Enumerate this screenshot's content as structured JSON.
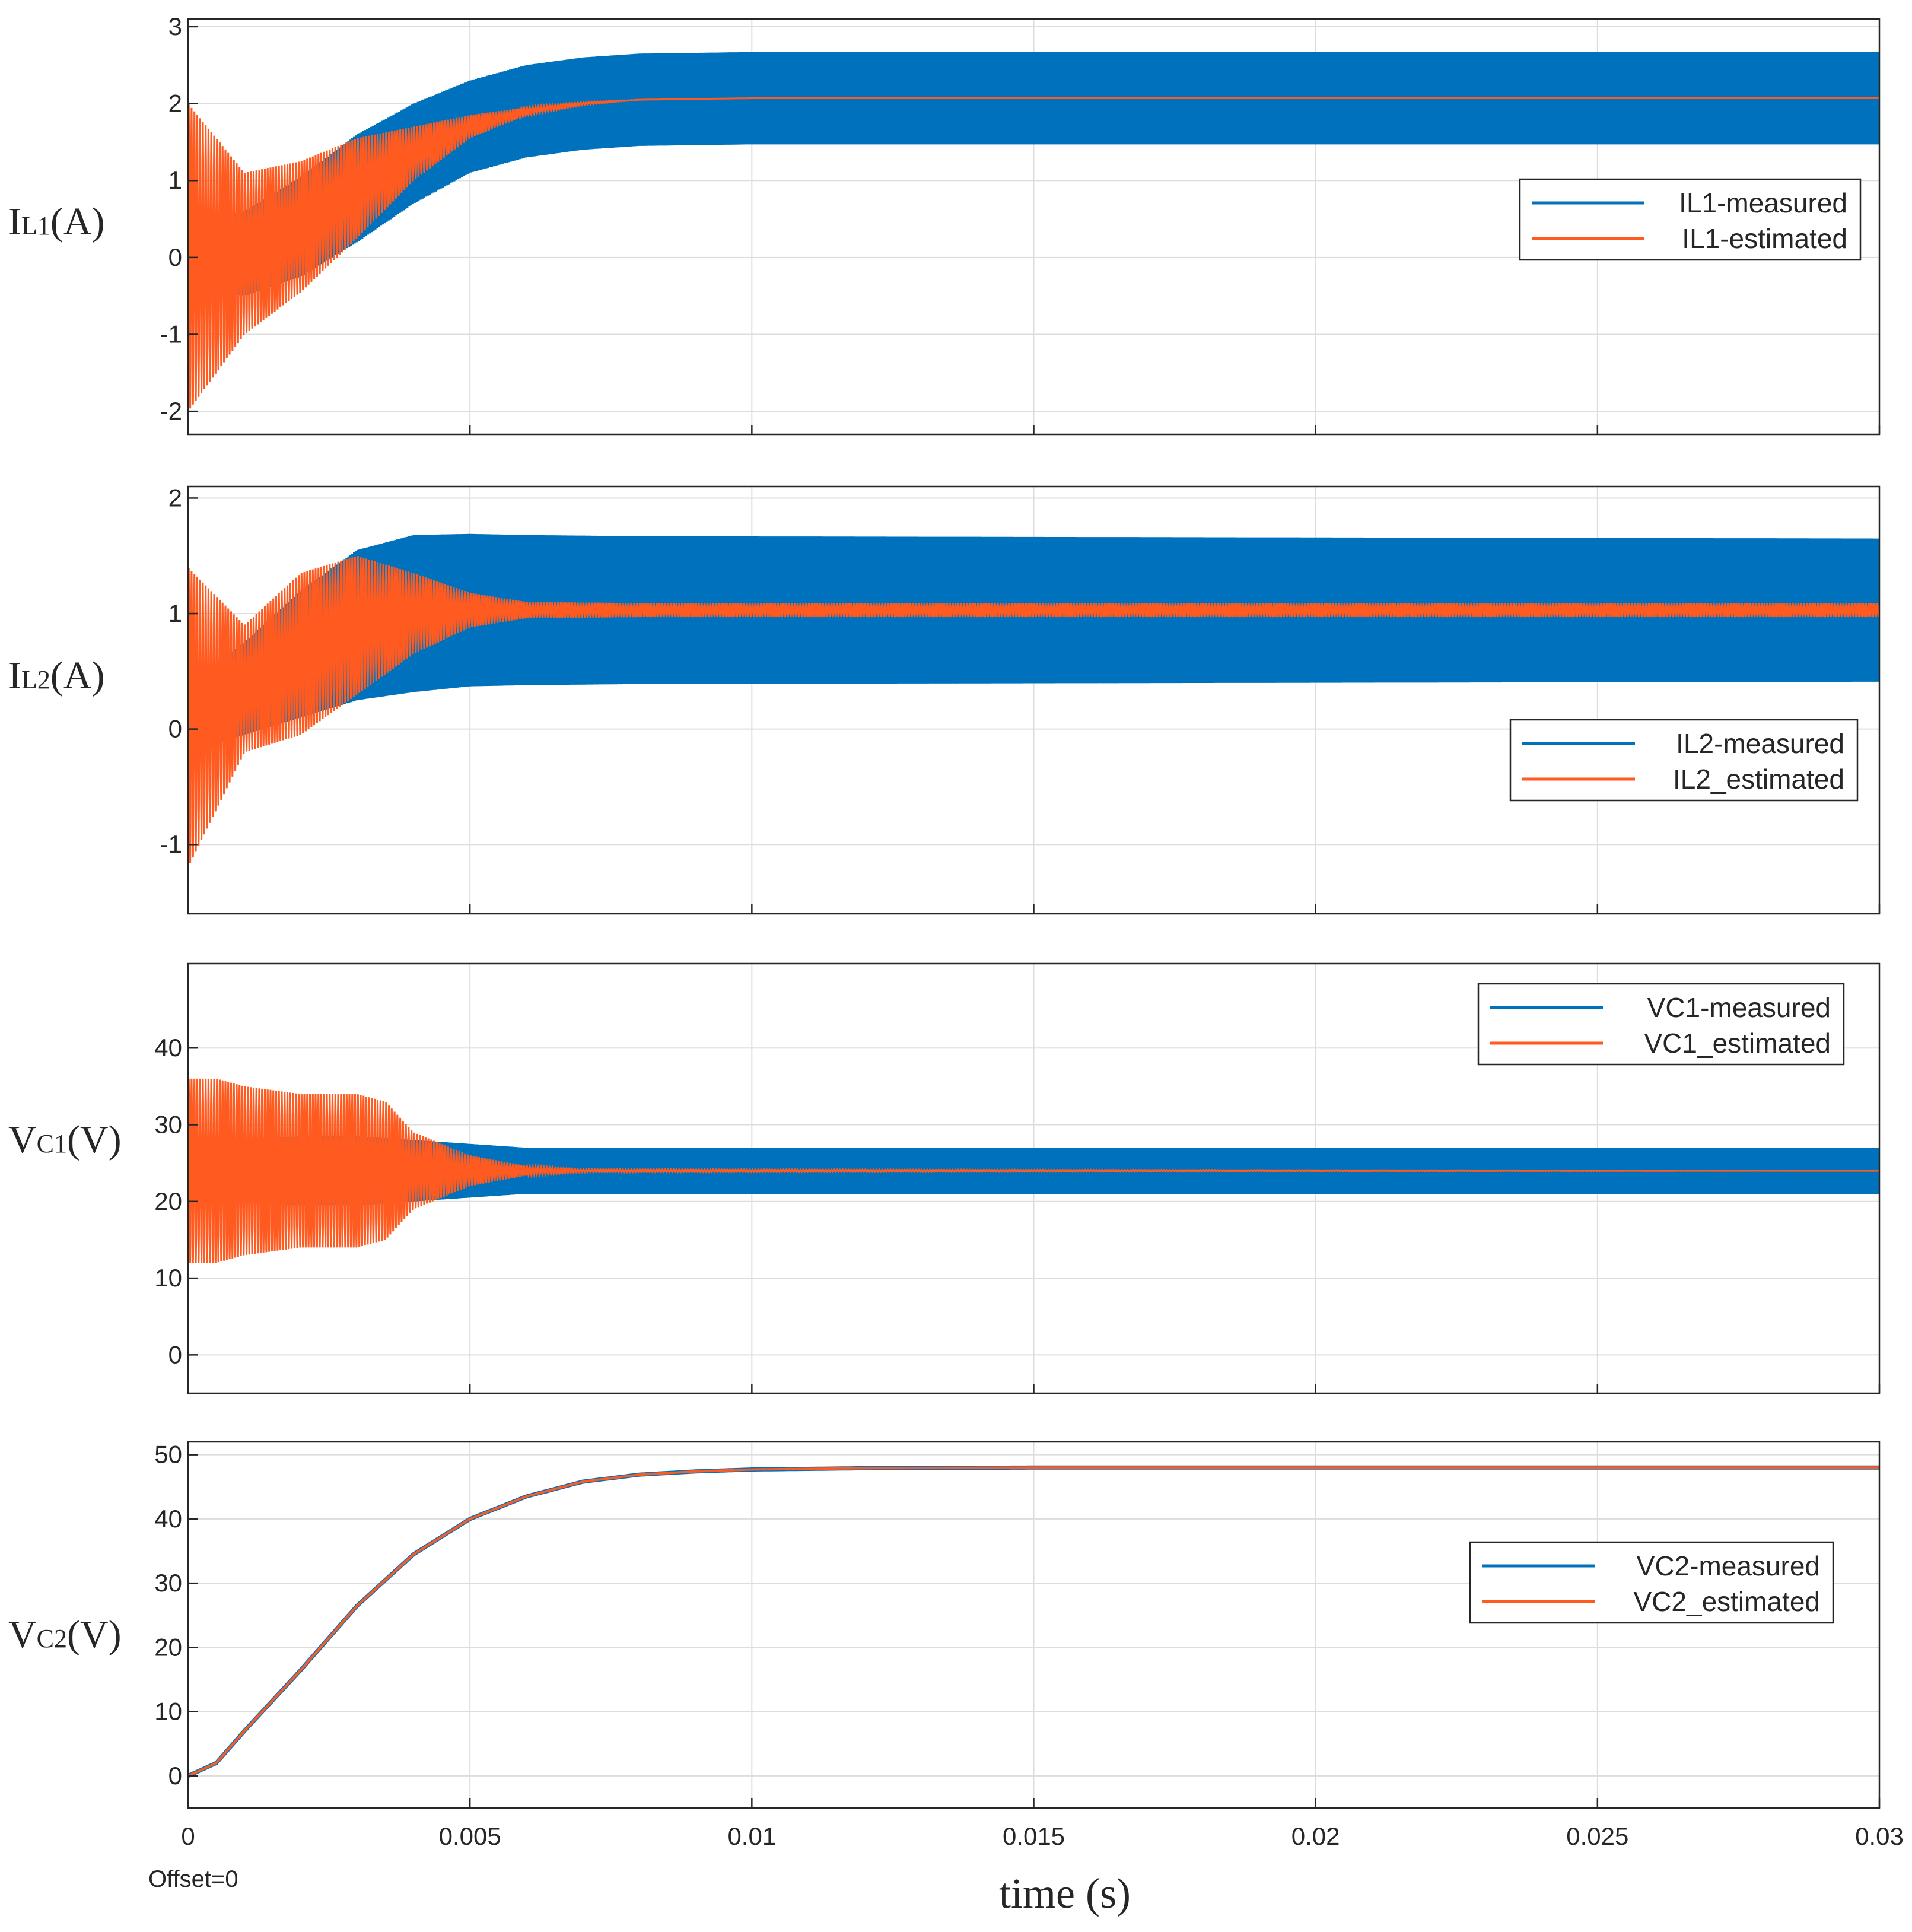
{
  "figure": {
    "xlabel": "time (s)",
    "offset_label": "Offset=0"
  },
  "colors": {
    "measured": "#0072BD",
    "estimated": "#FF5A1F",
    "grid": "#dddddd",
    "axis": "#262626"
  },
  "chart_data": [
    {
      "type": "line",
      "ylabel_main": "I",
      "ylabel_sub": "L1",
      "ylabel_unit": "(A)",
      "xlim": [
        0,
        0.03
      ],
      "ylim": [
        -2.3,
        3.1
      ],
      "xticks": [
        0,
        0.005,
        0.01,
        0.015,
        0.02,
        0.025,
        0.03
      ],
      "yticks": [
        -2,
        -1,
        0,
        1,
        2,
        3
      ],
      "ytick_labels": [
        "-2",
        "-1",
        "0",
        "1",
        "2",
        "3"
      ],
      "legend_position": "right",
      "series": [
        {
          "name": "IL1-measured",
          "color": "#0072BD",
          "kind": "ripple-band",
          "x": [
            0,
            0.001,
            0.002,
            0.003,
            0.004,
            0.005,
            0.006,
            0.007,
            0.008,
            0.01,
            0.03
          ],
          "center": [
            0.0,
            0.05,
            0.4,
            0.9,
            1.35,
            1.7,
            1.9,
            2.0,
            2.05,
            2.07,
            2.07
          ],
          "ripple": [
            0.45,
            0.55,
            0.65,
            0.7,
            0.65,
            0.6,
            0.6,
            0.6,
            0.6,
            0.6,
            0.6
          ]
        },
        {
          "name": "IL1-estimated",
          "color": "#FF5A1F",
          "kind": "damped",
          "x": [
            0,
            0.001,
            0.002,
            0.003,
            0.004,
            0.005,
            0.006,
            0.007,
            0.008,
            0.01,
            0.03
          ],
          "center": [
            0.0,
            0.05,
            0.4,
            0.9,
            1.35,
            1.7,
            1.9,
            2.0,
            2.05,
            2.07,
            2.07
          ],
          "ripple": [
            2.0,
            1.05,
            0.85,
            0.65,
            0.35,
            0.15,
            0.05,
            0.02,
            0.0,
            0.0,
            0.0
          ]
        }
      ]
    },
    {
      "type": "line",
      "ylabel_main": "I",
      "ylabel_sub": "L2",
      "ylabel_unit": "(A)",
      "xlim": [
        0,
        0.03
      ],
      "ylim": [
        -1.6,
        2.1
      ],
      "xticks": [
        0,
        0.005,
        0.01,
        0.015,
        0.02,
        0.025,
        0.03
      ],
      "yticks": [
        -1,
        0,
        1,
        2
      ],
      "ytick_labels": [
        "-1",
        "0",
        "1",
        "2"
      ],
      "legend_position": "lower-right",
      "series": [
        {
          "name": "IL2-measured",
          "color": "#0072BD",
          "kind": "ripple-band",
          "x": [
            0,
            0.001,
            0.002,
            0.003,
            0.004,
            0.005,
            0.006,
            0.008,
            0.03
          ],
          "center": [
            0.1,
            0.35,
            0.65,
            0.9,
            1.0,
            1.03,
            1.03,
            1.03,
            1.03
          ],
          "ripple": [
            0.3,
            0.4,
            0.55,
            0.65,
            0.68,
            0.66,
            0.65,
            0.64,
            0.62
          ]
        },
        {
          "name": "IL2_estimated",
          "color": "#FF5A1F",
          "kind": "damped",
          "x": [
            0,
            0.001,
            0.002,
            0.003,
            0.004,
            0.005,
            0.006,
            0.008,
            0.03
          ],
          "center": [
            0.1,
            0.35,
            0.65,
            0.9,
            1.0,
            1.03,
            1.03,
            1.03,
            1.03
          ],
          "ripple": [
            1.3,
            0.55,
            0.7,
            0.6,
            0.35,
            0.15,
            0.07,
            0.06,
            0.06
          ]
        }
      ]
    },
    {
      "type": "line",
      "ylabel_main": "V",
      "ylabel_sub": "C1",
      "ylabel_unit": "(V)",
      "xlim": [
        0,
        0.03
      ],
      "ylim": [
        -5,
        51
      ],
      "xticks": [
        0,
        0.005,
        0.01,
        0.015,
        0.02,
        0.025,
        0.03
      ],
      "yticks": [
        0,
        10,
        20,
        30,
        40
      ],
      "ytick_labels": [
        "0",
        "10",
        "20",
        "30",
        "40"
      ],
      "legend_position": "top-right",
      "series": [
        {
          "name": "VC1-measured",
          "color": "#0072BD",
          "kind": "ripple-band",
          "x": [
            0,
            0.001,
            0.002,
            0.003,
            0.004,
            0.005,
            0.006,
            0.03
          ],
          "center": [
            24,
            24,
            24,
            24,
            24,
            24,
            24,
            24
          ],
          "ripple": [
            3.5,
            4.0,
            4.5,
            4.5,
            4.0,
            3.5,
            3.0,
            3.0
          ]
        },
        {
          "name": "VC1_estimated",
          "color": "#FF5A1F",
          "kind": "damped",
          "x": [
            0,
            0.0005,
            0.001,
            0.002,
            0.003,
            0.0035,
            0.004,
            0.005,
            0.006,
            0.007,
            0.03
          ],
          "center": [
            24,
            24,
            24,
            24,
            24,
            24,
            24,
            24,
            24,
            24,
            24
          ],
          "ripple": [
            12,
            12,
            11,
            10,
            10,
            9,
            5,
            2,
            0.6,
            0.2,
            0.0
          ]
        }
      ]
    },
    {
      "type": "line",
      "ylabel_main": "V",
      "ylabel_sub": "C2",
      "ylabel_unit": "(V)",
      "xlim": [
        0,
        0.03
      ],
      "ylim": [
        -5,
        52
      ],
      "xticks": [
        0,
        0.005,
        0.01,
        0.015,
        0.02,
        0.025,
        0.03
      ],
      "xtick_labels": [
        "0",
        "0.005",
        "0.01",
        "0.015",
        "0.02",
        "0.025",
        "0.03"
      ],
      "yticks": [
        0,
        10,
        20,
        30,
        40,
        50
      ],
      "ytick_labels": [
        "0",
        "10",
        "20",
        "30",
        "40",
        "50"
      ],
      "legend_position": "right",
      "series": [
        {
          "name": "VC2-measured",
          "color": "#0072BD",
          "kind": "smooth",
          "x": [
            0,
            0.0005,
            0.001,
            0.002,
            0.003,
            0.004,
            0.005,
            0.006,
            0.007,
            0.008,
            0.009,
            0.01,
            0.012,
            0.015,
            0.03
          ],
          "y": [
            0,
            2,
            7,
            16.5,
            26.5,
            34.5,
            40,
            43.5,
            45.8,
            46.9,
            47.4,
            47.7,
            47.9,
            48,
            48
          ]
        },
        {
          "name": "VC2_estimated",
          "color": "#FF5A1F",
          "kind": "smooth",
          "x": [
            0,
            0.0005,
            0.001,
            0.002,
            0.003,
            0.004,
            0.005,
            0.006,
            0.007,
            0.008,
            0.009,
            0.01,
            0.012,
            0.015,
            0.03
          ],
          "y": [
            0,
            2,
            7,
            16.5,
            26.5,
            34.5,
            40,
            43.5,
            45.8,
            46.9,
            47.4,
            47.7,
            47.9,
            48,
            48
          ]
        }
      ]
    }
  ]
}
